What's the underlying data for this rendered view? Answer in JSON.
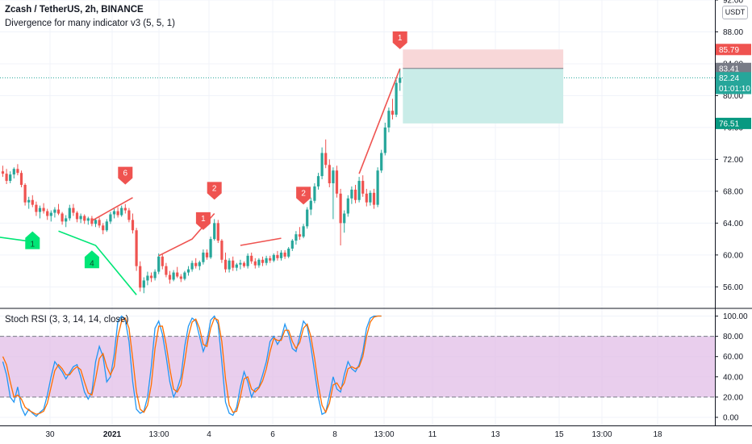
{
  "header": {
    "symbol": "Zcash / TetherUS, 2h, BINANCE",
    "indicator": "Divergence for many indicator v3 (5, 5, 1)",
    "pane2_title": "Stoch RSI (3, 3, 14, 14, close)",
    "currency_button": "USDT"
  },
  "colors": {
    "up": "#26a69a",
    "down": "#ef5350",
    "bull_div_line": "#00e676",
    "bear_div_line": "#ef5350",
    "k_line": "#2196f3",
    "d_line": "#ff6d00",
    "rsi_band": "#e1bee7",
    "stop_zone": "#f8d7d8",
    "target_zone": "#c9ece8"
  },
  "price_labels": [
    {
      "text": "85.79",
      "value": 85.79,
      "color": "#ef5350"
    },
    {
      "text": "83.41",
      "value": 83.41,
      "color": "#787b86"
    },
    {
      "text": "82.24",
      "value": 82.24,
      "color": "#26a69a"
    },
    {
      "text": "01:01:10",
      "value": 80.9,
      "color": "#26a69a"
    },
    {
      "text": "76.51",
      "value": 76.51,
      "color": "#089981"
    }
  ],
  "chart_data": [
    {
      "type": "candlestick",
      "title": "Zcash / TetherUS, 2h, BINANCE",
      "ylim": [
        53.5,
        92
      ],
      "y_ticks": [
        "92.00",
        "88.00",
        "84.00",
        "80.00",
        "76.00",
        "72.00",
        "68.00",
        "64.00",
        "60.00",
        "56.00"
      ],
      "x_ticks": [
        "30",
        "2021",
        "13:00",
        "4",
        "6",
        "8",
        "13:00",
        "11",
        "13",
        "15",
        "13:00",
        "18"
      ],
      "ohlc": [
        [
          70.5,
          71.2,
          69.8,
          70.2
        ],
        [
          70.2,
          70.8,
          68.9,
          69.3
        ],
        [
          69.3,
          70.5,
          69.0,
          70.1
        ],
        [
          70.1,
          71.0,
          69.6,
          70.8
        ],
        [
          70.8,
          71.4,
          70.0,
          70.3
        ],
        [
          70.3,
          70.6,
          68.5,
          68.8
        ],
        [
          68.8,
          69.0,
          66.2,
          66.6
        ],
        [
          66.6,
          67.3,
          65.8,
          66.9
        ],
        [
          66.9,
          67.5,
          66.0,
          66.3
        ],
        [
          66.3,
          66.7,
          64.9,
          65.4
        ],
        [
          65.4,
          66.2,
          64.6,
          65.9
        ],
        [
          65.9,
          66.5,
          65.2,
          65.5
        ],
        [
          65.5,
          65.8,
          64.4,
          64.9
        ],
        [
          64.9,
          65.6,
          64.2,
          65.3
        ],
        [
          65.3,
          66.0,
          64.7,
          65.7
        ],
        [
          65.7,
          66.4,
          65.0,
          65.2
        ],
        [
          65.2,
          65.4,
          63.8,
          64.2
        ],
        [
          64.2,
          65.0,
          63.5,
          64.6
        ],
        [
          64.6,
          66.3,
          64.3,
          65.9
        ],
        [
          65.9,
          66.4,
          64.9,
          65.3
        ],
        [
          65.3,
          65.5,
          64.1,
          64.5
        ],
        [
          64.5,
          65.2,
          64.0,
          64.9
        ],
        [
          64.9,
          65.1,
          63.9,
          64.3
        ],
        [
          64.3,
          64.8,
          63.8,
          64.6
        ],
        [
          64.6,
          64.9,
          63.6,
          63.9
        ],
        [
          63.9,
          64.6,
          63.5,
          64.4
        ],
        [
          64.4,
          64.7,
          63.4,
          63.7
        ],
        [
          63.7,
          64.0,
          62.6,
          63.1
        ],
        [
          63.1,
          64.5,
          62.9,
          64.2
        ],
        [
          64.2,
          65.4,
          63.9,
          65.1
        ],
        [
          65.1,
          65.8,
          64.6,
          65.5
        ],
        [
          65.5,
          66.0,
          64.7,
          65.0
        ],
        [
          65.0,
          66.2,
          64.8,
          65.9
        ],
        [
          65.9,
          66.4,
          65.2,
          65.6
        ],
        [
          65.6,
          65.9,
          64.1,
          64.4
        ],
        [
          64.4,
          65.2,
          62.7,
          63.1
        ],
        [
          63.1,
          63.4,
          58.0,
          58.6
        ],
        [
          58.6,
          59.2,
          55.4,
          55.9
        ],
        [
          55.9,
          57.2,
          55.2,
          56.8
        ],
        [
          56.8,
          57.9,
          56.2,
          57.4
        ],
        [
          57.4,
          57.8,
          56.6,
          57.1
        ],
        [
          57.1,
          58.2,
          56.8,
          57.9
        ],
        [
          57.9,
          60.2,
          57.6,
          59.8
        ],
        [
          59.8,
          60.2,
          58.2,
          58.6
        ],
        [
          58.6,
          59.0,
          57.2,
          57.5
        ],
        [
          57.5,
          58.0,
          56.4,
          56.9
        ],
        [
          56.9,
          58.1,
          56.7,
          57.8
        ],
        [
          57.8,
          58.5,
          57.1,
          57.3
        ],
        [
          57.3,
          57.6,
          56.6,
          57.0
        ],
        [
          57.0,
          58.0,
          56.8,
          57.8
        ],
        [
          57.8,
          58.6,
          57.4,
          58.2
        ],
        [
          58.2,
          59.3,
          57.9,
          59.0
        ],
        [
          59.0,
          59.6,
          58.3,
          58.6
        ],
        [
          58.6,
          59.3,
          58.1,
          59.1
        ],
        [
          59.1,
          60.7,
          58.8,
          60.3
        ],
        [
          60.3,
          60.7,
          59.4,
          59.7
        ],
        [
          59.7,
          62.3,
          59.5,
          62.0
        ],
        [
          62.0,
          64.5,
          61.8,
          64.0
        ],
        [
          64.0,
          64.4,
          61.5,
          61.8
        ],
        [
          61.8,
          62.0,
          59.0,
          59.4
        ],
        [
          59.4,
          60.3,
          57.8,
          58.2
        ],
        [
          58.2,
          59.6,
          57.8,
          59.3
        ],
        [
          59.3,
          59.8,
          58.0,
          58.4
        ],
        [
          58.4,
          59.0,
          58.0,
          58.8
        ],
        [
          58.8,
          59.4,
          58.2,
          59.0
        ],
        [
          59.0,
          59.2,
          58.4,
          58.6
        ],
        [
          58.6,
          60.2,
          58.3,
          59.9
        ],
        [
          59.9,
          60.3,
          58.9,
          59.2
        ],
        [
          59.2,
          59.6,
          58.3,
          58.7
        ],
        [
          58.7,
          59.6,
          58.4,
          59.4
        ],
        [
          59.4,
          59.8,
          58.6,
          59.0
        ],
        [
          59.0,
          59.9,
          58.7,
          59.6
        ],
        [
          59.6,
          59.9,
          59.0,
          59.3
        ],
        [
          59.3,
          60.2,
          59.1,
          60.0
        ],
        [
          60.0,
          60.5,
          59.3,
          59.6
        ],
        [
          59.6,
          60.6,
          59.3,
          60.3
        ],
        [
          60.3,
          60.6,
          59.5,
          59.8
        ],
        [
          59.8,
          61.0,
          59.6,
          60.8
        ],
        [
          60.8,
          62.0,
          60.5,
          61.8
        ],
        [
          61.8,
          63.0,
          61.3,
          62.6
        ],
        [
          62.6,
          63.5,
          61.9,
          62.3
        ],
        [
          62.3,
          63.9,
          62.1,
          63.6
        ],
        [
          63.6,
          66.0,
          63.3,
          65.7
        ],
        [
          65.7,
          67.2,
          65.0,
          66.8
        ],
        [
          66.8,
          69.0,
          66.5,
          68.6
        ],
        [
          68.6,
          70.3,
          68.2,
          69.9
        ],
        [
          69.9,
          73.5,
          69.5,
          72.8
        ],
        [
          72.8,
          74.5,
          70.9,
          71.3
        ],
        [
          71.3,
          72.0,
          68.5,
          69.0
        ],
        [
          69.0,
          71.0,
          64.5,
          70.6
        ],
        [
          70.6,
          71.2,
          67.2,
          67.7
        ],
        [
          67.7,
          68.3,
          61.2,
          64.0
        ],
        [
          64.0,
          65.6,
          62.8,
          65.2
        ],
        [
          65.2,
          67.5,
          64.8,
          67.1
        ],
        [
          67.1,
          68.6,
          66.4,
          68.2
        ],
        [
          68.2,
          68.8,
          66.5,
          66.9
        ],
        [
          66.9,
          69.8,
          66.6,
          69.3
        ],
        [
          69.3,
          70.0,
          67.3,
          67.7
        ],
        [
          67.7,
          68.3,
          66.1,
          66.6
        ],
        [
          66.6,
          68.1,
          66.2,
          67.8
        ],
        [
          67.8,
          68.3,
          65.8,
          66.3
        ],
        [
          66.3,
          71.0,
          66.0,
          70.6
        ],
        [
          70.6,
          73.2,
          70.3,
          72.8
        ],
        [
          72.8,
          76.6,
          72.5,
          76.0
        ],
        [
          76.0,
          78.5,
          75.4,
          78.1
        ],
        [
          78.1,
          79.6,
          77.0,
          77.6
        ],
        [
          77.6,
          82.0,
          77.3,
          81.6
        ],
        [
          81.6,
          83.4,
          80.6,
          82.24
        ]
      ],
      "markers": [
        {
          "label": "6",
          "kind": "bearish",
          "bar": 33
        },
        {
          "label": "1",
          "kind": "bearish",
          "bar": 54
        },
        {
          "label": "2",
          "kind": "bearish",
          "bar": 57
        },
        {
          "label": "2",
          "kind": "bearish",
          "bar": 81
        },
        {
          "label": "1",
          "kind": "bearish",
          "bar": 107
        },
        {
          "label": "1",
          "kind": "bullish",
          "bar": 8
        },
        {
          "label": "4",
          "kind": "bullish",
          "bar": 24
        }
      ],
      "divergence_lines": [
        {
          "kind": "bullish",
          "points": [
            [
              -2,
              62.3
            ],
            [
              9,
              61.6
            ]
          ]
        },
        {
          "kind": "bullish",
          "points": [
            [
              15,
              63.0
            ],
            [
              25,
              61.2
            ],
            [
              36,
              55.0
            ]
          ]
        },
        {
          "kind": "bearish",
          "points": [
            [
              24,
              64.3
            ],
            [
              35,
              67.2
            ]
          ]
        },
        {
          "kind": "bearish",
          "points": [
            [
              42,
              59.9
            ],
            [
              51,
              62.0
            ],
            [
              57,
              65.2
            ]
          ]
        },
        {
          "kind": "bearish",
          "points": [
            [
              64,
              61.2
            ],
            [
              75,
              62.1
            ]
          ]
        },
        {
          "kind": "bearish",
          "points": [
            [
              96,
              70.2
            ],
            [
              107,
              83.4
            ]
          ]
        }
      ],
      "position": {
        "stop": 85.79,
        "entry": 83.41,
        "target": 76.51,
        "from_bar": 108,
        "to_bar": 151
      }
    },
    {
      "type": "line",
      "title": "Stoch RSI (3, 3, 14, 14, close)",
      "ylim": [
        -8,
        106
      ],
      "y_ticks": [
        "100.00",
        "80.00",
        "60.00",
        "40.00",
        "20.00",
        "0.00"
      ],
      "band": [
        20,
        80
      ],
      "series": [
        {
          "name": "K",
          "values": [
            55,
            42,
            20,
            15,
            30,
            10,
            2,
            8,
            4,
            1,
            5,
            8,
            22,
            40,
            55,
            50,
            45,
            38,
            44,
            50,
            52,
            40,
            25,
            18,
            25,
            55,
            70,
            60,
            35,
            40,
            62,
            95,
            100,
            96,
            75,
            35,
            8,
            4,
            6,
            20,
            50,
            88,
            95,
            82,
            60,
            35,
            20,
            28,
            40,
            70,
            90,
            98,
            95,
            80,
            65,
            75,
            96,
            100,
            92,
            55,
            15,
            4,
            2,
            10,
            30,
            45,
            35,
            20,
            28,
            30,
            42,
            55,
            75,
            80,
            72,
            78,
            92,
            82,
            68,
            65,
            80,
            95,
            90,
            70,
            45,
            20,
            3,
            5,
            22,
            40,
            28,
            25,
            42,
            55,
            48,
            45,
            52,
            65,
            88,
            98,
            100,
            100,
            100
          ]
        },
        {
          "name": "D",
          "values": [
            60,
            52,
            35,
            20,
            22,
            18,
            10,
            7,
            5,
            3,
            4,
            6,
            14,
            30,
            46,
            52,
            48,
            42,
            42,
            47,
            50,
            47,
            35,
            24,
            22,
            38,
            58,
            63,
            50,
            42,
            50,
            80,
            95,
            98,
            88,
            58,
            25,
            8,
            5,
            12,
            32,
            68,
            90,
            90,
            72,
            48,
            28,
            25,
            32,
            55,
            80,
            94,
            97,
            88,
            72,
            70,
            88,
            98,
            96,
            75,
            38,
            12,
            5,
            6,
            20,
            38,
            40,
            28,
            25,
            29,
            36,
            48,
            65,
            78,
            76,
            76,
            86,
            86,
            75,
            68,
            74,
            88,
            92,
            80,
            58,
            32,
            12,
            5,
            14,
            32,
            34,
            28,
            34,
            48,
            50,
            48,
            50,
            60,
            80,
            94,
            99,
            100,
            100
          ]
        }
      ]
    }
  ]
}
